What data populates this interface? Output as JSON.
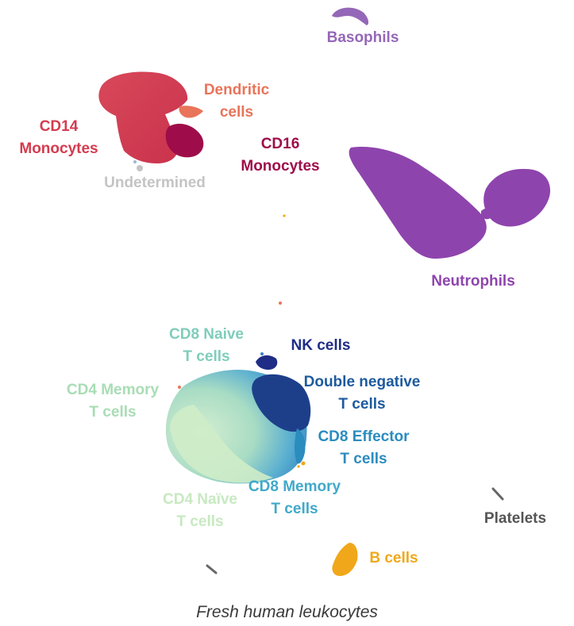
{
  "caption": "Fresh human leukocytes",
  "clusters": {
    "basophils": {
      "lines": [
        "Basophils"
      ],
      "color": "#9467b8"
    },
    "dendritic": {
      "lines": [
        "Dendritic",
        "cells"
      ],
      "color": "#e8745a"
    },
    "cd14_mono": {
      "lines": [
        "CD14",
        "Monocytes"
      ],
      "color": "#d43c4f"
    },
    "cd16_mono": {
      "lines": [
        "CD16",
        "Monocytes"
      ],
      "color": "#9e0d4a"
    },
    "undetermined": {
      "lines": [
        "Undetermined"
      ],
      "color": "#c4c4c4"
    },
    "neutrophils": {
      "lines": [
        "Neutrophils"
      ],
      "color": "#8e44ad"
    },
    "cd8_naive": {
      "lines": [
        "CD8 Naive",
        "T cells"
      ],
      "color": "#7fcdbb"
    },
    "nk": {
      "lines": [
        "NK cells"
      ],
      "color": "#1f2d86"
    },
    "cd4_memory": {
      "lines": [
        "CD4 Memory",
        "T cells"
      ],
      "color": "#a8ddb5"
    },
    "double_negative": {
      "lines": [
        "Double negative",
        "T cells"
      ],
      "color": "#1d5a9e"
    },
    "cd8_effector": {
      "lines": [
        "CD8 Effector",
        "T cells"
      ],
      "color": "#2b8cbe"
    },
    "cd8_memory": {
      "lines": [
        "CD8 Memory",
        "T cells"
      ],
      "color": "#41a9c9"
    },
    "cd4_naive": {
      "lines": [
        "CD4 Naïve",
        "T cells"
      ],
      "color": "#c7e9c0"
    },
    "platelets": {
      "lines": [
        "Platelets"
      ],
      "color": "#555555"
    },
    "b_cells": {
      "lines": [
        "B cells"
      ],
      "color": "#f0a81a"
    }
  }
}
